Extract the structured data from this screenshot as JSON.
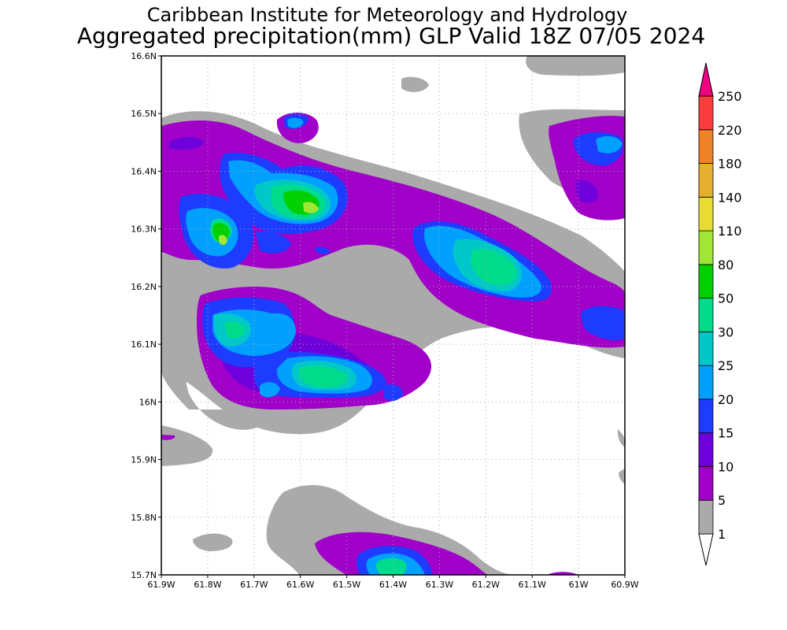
{
  "title": {
    "line1": "Caribbean Institute for Meteorology and Hydrology",
    "line2": "Aggregated precipitation(mm) GLP Valid 18Z 07/05 2024"
  },
  "map": {
    "lon_range": [
      -61.9,
      -60.9
    ],
    "lat_range": [
      15.7,
      16.6
    ],
    "x_ticks": [
      "61.9W",
      "61.8W",
      "61.7W",
      "61.6W",
      "61.5W",
      "61.4W",
      "61.3W",
      "61.2W",
      "61.1W",
      "61W",
      "60.9W"
    ],
    "y_ticks": [
      "15.7N",
      "15.8N",
      "15.9N",
      "16N",
      "16.1N",
      "16.2N",
      "16.3N",
      "16.4N",
      "16.5N",
      "16.6N"
    ],
    "grid": true
  },
  "colorbar": {
    "labels": [
      "1",
      "5",
      "10",
      "15",
      "20",
      "25",
      "30",
      "50",
      "80",
      "110",
      "140",
      "180",
      "220",
      "250"
    ],
    "colors": [
      "#aaaaaa",
      "#a000c8",
      "#6e00dc",
      "#1e3cff",
      "#00a0ff",
      "#00c8c8",
      "#00dc8c",
      "#00d000",
      "#a0e632",
      "#e6dc32",
      "#e6af2d",
      "#f08228",
      "#fa3c3c",
      "#f00082"
    ]
  }
}
